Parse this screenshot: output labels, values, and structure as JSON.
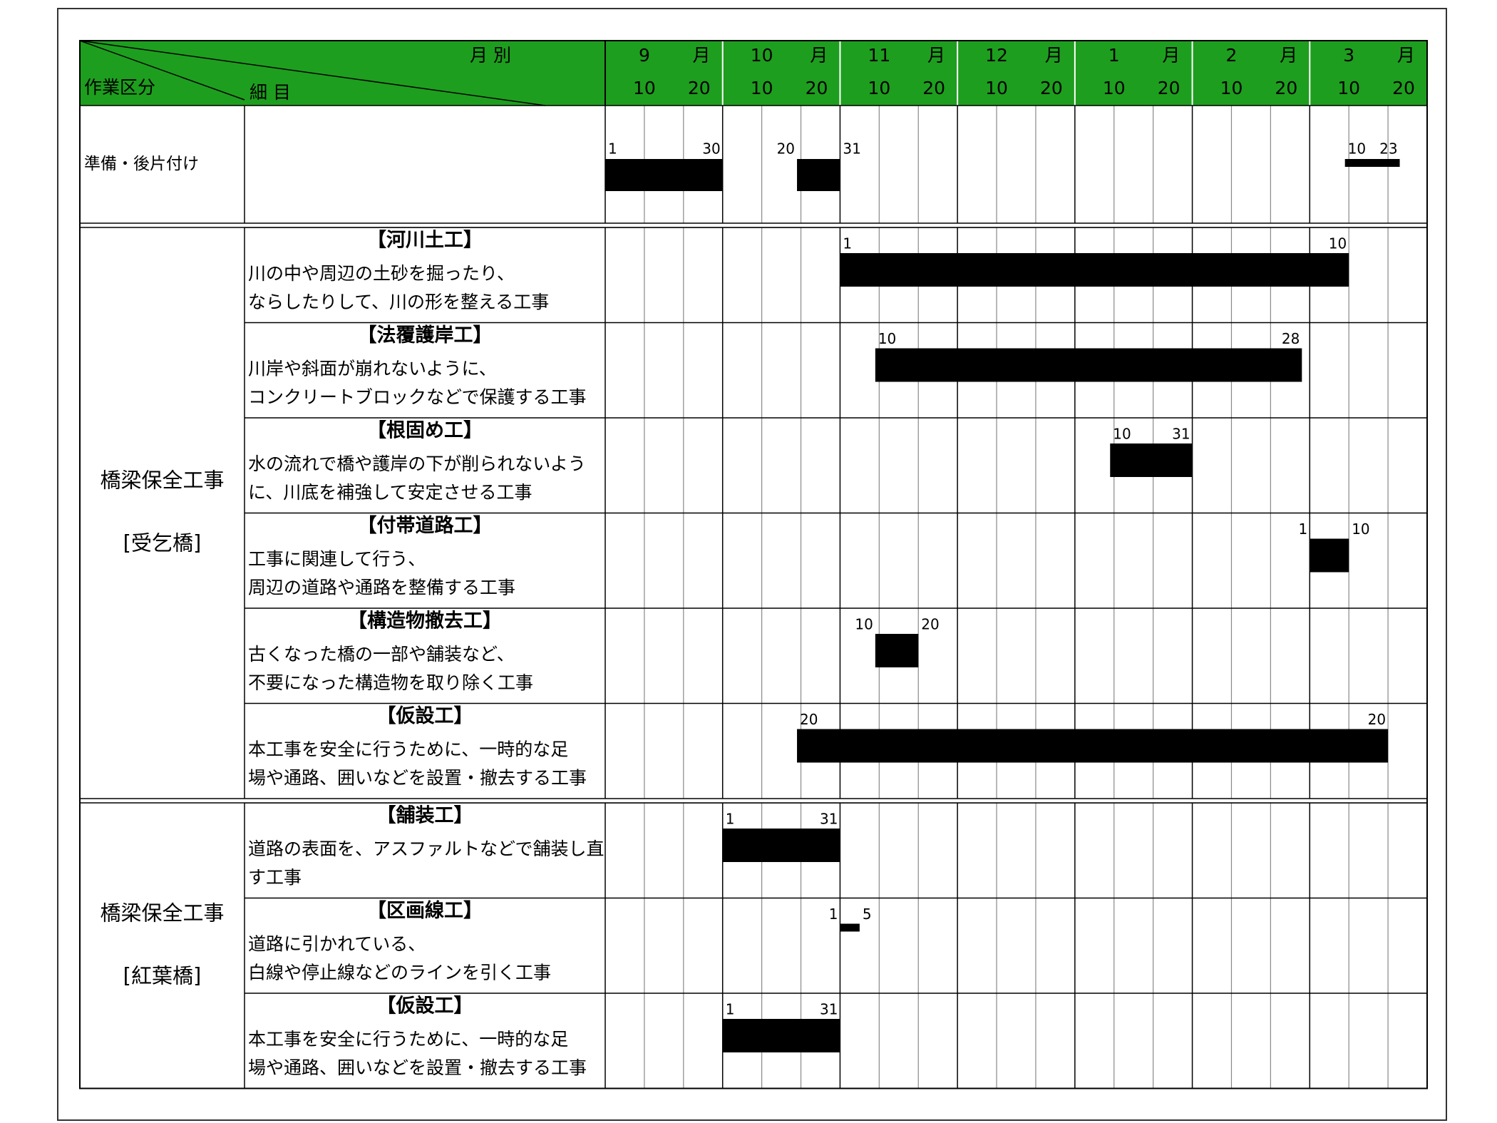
{
  "header": {
    "corner_top": "月 別",
    "corner_left": "作業区分",
    "corner_mid": "細 目",
    "month_unit": "月",
    "months": [
      "9",
      "10",
      "11",
      "12",
      "1",
      "2",
      "3"
    ],
    "dekads": [
      "10",
      "20"
    ]
  },
  "rows": [
    {
      "section": "準備・後片付け",
      "bars": [
        {
          "start_month": "9",
          "start": 1,
          "end_month": "9",
          "end": 30
        },
        {
          "start_month": "10",
          "start": 20,
          "end_month": "10",
          "end": 31
        },
        {
          "start_month": "3",
          "start": 10,
          "end_month": "3",
          "end": 23,
          "thin": true
        }
      ]
    }
  ],
  "groups": [
    {
      "name": "橋梁保全工事",
      "site": "[受乞橋]",
      "items": [
        {
          "title": "【河川土工】",
          "description": [
            "川の中や周辺の土砂を掘ったり、",
            "ならしたりして、川の形を整える工事"
          ],
          "bars": [
            {
              "start_month": "11",
              "start": 1,
              "end_month": "3",
              "end": 10
            }
          ]
        },
        {
          "title": "【法覆護岸工】",
          "description": [
            "川岸や斜面が崩れないように、",
            "コンクリートブロックなどで保護する工事"
          ],
          "bars": [
            {
              "start_month": "11",
              "start": 10,
              "end_month": "2",
              "end": 28
            }
          ]
        },
        {
          "title": "【根固め工】",
          "description": [
            "水の流れで橋や護岸の下が削られないよう",
            "に、川底を補強して安定させる工事"
          ],
          "bars": [
            {
              "start_month": "1",
              "start": 10,
              "end_month": "1",
              "end": 31
            }
          ]
        },
        {
          "title": "【付帯道路工】",
          "description": [
            "工事に関連して行う、",
            "周辺の道路や通路を整備する工事"
          ],
          "bars": [
            {
              "start_month": "3",
              "start": 1,
              "end_month": "3",
              "end": 10
            }
          ]
        },
        {
          "title": "【構造物撤去工】",
          "description": [
            "古くなった橋の一部や舗装など、",
            "不要になった構造物を取り除く工事"
          ],
          "bars": [
            {
              "start_month": "11",
              "start": 10,
              "end_month": "11",
              "end": 20
            }
          ]
        },
        {
          "title": "【仮設工】",
          "description": [
            "本工事を安全に行うために、一時的な足",
            "場や通路、囲いなどを設置・撤去する工事"
          ],
          "bars": [
            {
              "start_month": "10",
              "start": 20,
              "end_month": "3",
              "end": 20
            }
          ]
        }
      ]
    },
    {
      "name": "橋梁保全工事",
      "site": "[紅葉橋]",
      "items": [
        {
          "title": "【舗装工】",
          "description": [
            "道路の表面を、アスファルトなどで舗装し直",
            "す工事"
          ],
          "bars": [
            {
              "start_month": "10",
              "start": 1,
              "end_month": "10",
              "end": 31
            }
          ]
        },
        {
          "title": "【区画線工】",
          "description": [
            "道路に引かれている、",
            "白線や停止線などのラインを引く工事"
          ],
          "bars": [
            {
              "start_month": "11",
              "start": 1,
              "end_month": "11",
              "end": 5,
              "thin": true
            }
          ]
        },
        {
          "title": "【仮設工】",
          "description": [
            "本工事を安全に行うために、一時的な足",
            "場や通路、囲いなどを設置・撤去する工事"
          ],
          "bars": [
            {
              "start_month": "10",
              "start": 1,
              "end_month": "10",
              "end": 31
            }
          ]
        }
      ]
    }
  ]
}
